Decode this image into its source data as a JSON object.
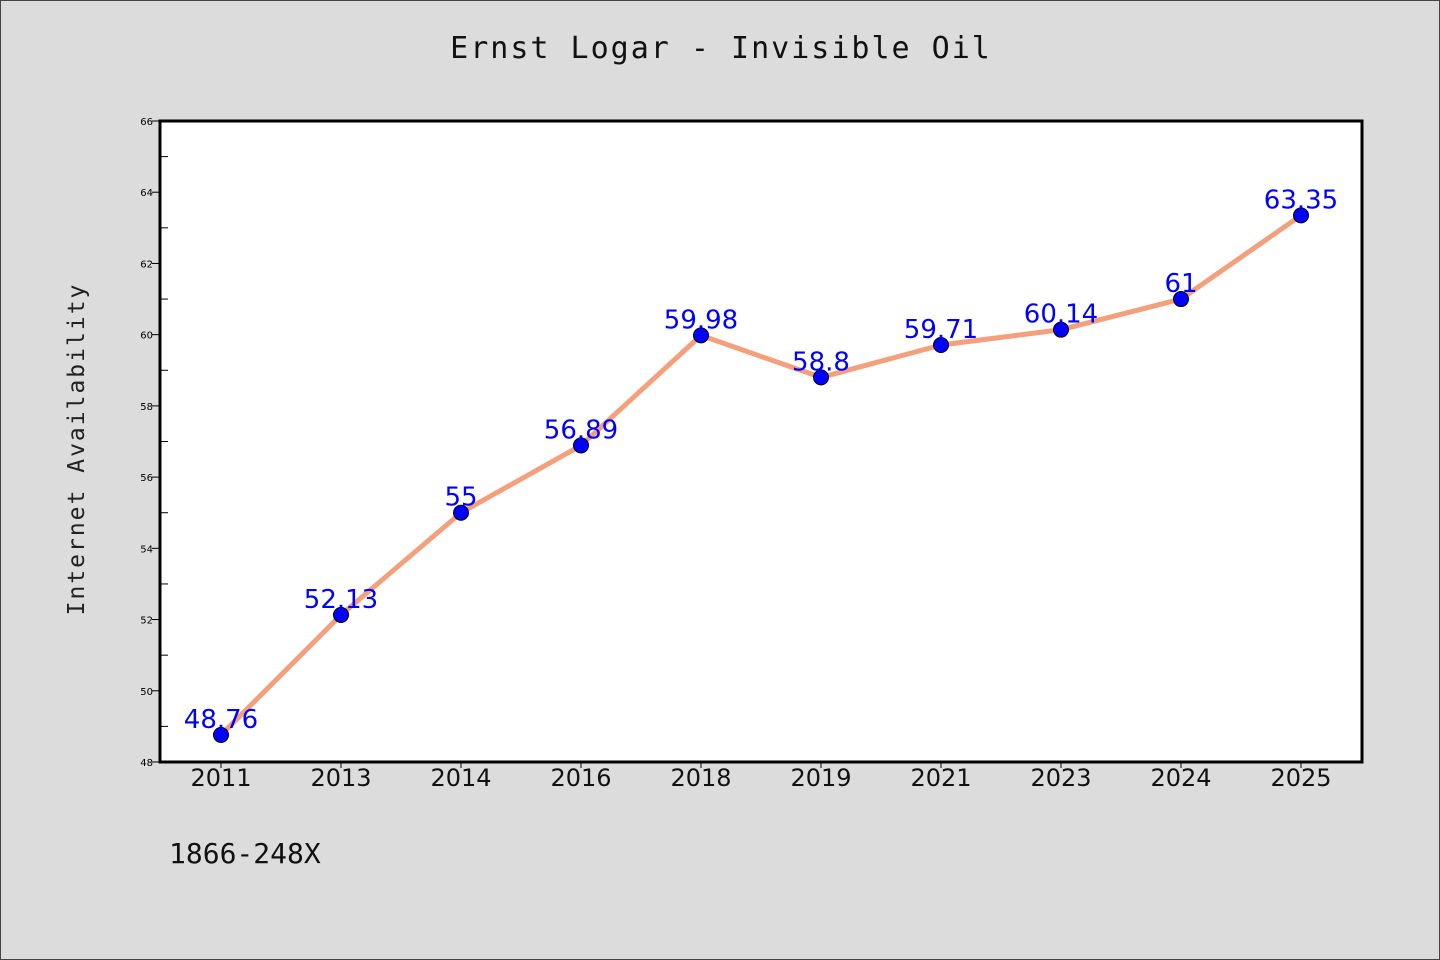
{
  "chart_data": {
    "type": "line",
    "title": "Ernst Logar - Invisible Oil",
    "xlabel": "",
    "ylabel": "Internet Availability",
    "footnote": "1866-248X",
    "categories": [
      "2011",
      "2013",
      "2014",
      "2016",
      "2018",
      "2019",
      "2021",
      "2023",
      "2024",
      "2025"
    ],
    "series": [
      {
        "values": [
          48.76,
          52.13,
          55,
          56.89,
          59.98,
          58.8,
          59.71,
          60.14,
          61,
          63.35
        ],
        "labels": [
          "48.76",
          "52.13",
          "55",
          "56.89",
          "59.98",
          "58.8",
          "59.71",
          "60.14",
          "61",
          "63.35"
        ],
        "line_color": "#f4a07c",
        "marker_color": "#0000ff"
      }
    ],
    "ylim": [
      48,
      66
    ],
    "yticks": [
      "48",
      "50",
      "52",
      "54",
      "56",
      "58",
      "60",
      "62",
      "64",
      "66"
    ],
    "grid": false,
    "legend": "none",
    "plot_background": "#ffffff",
    "page_background": "#dcdcdc"
  }
}
